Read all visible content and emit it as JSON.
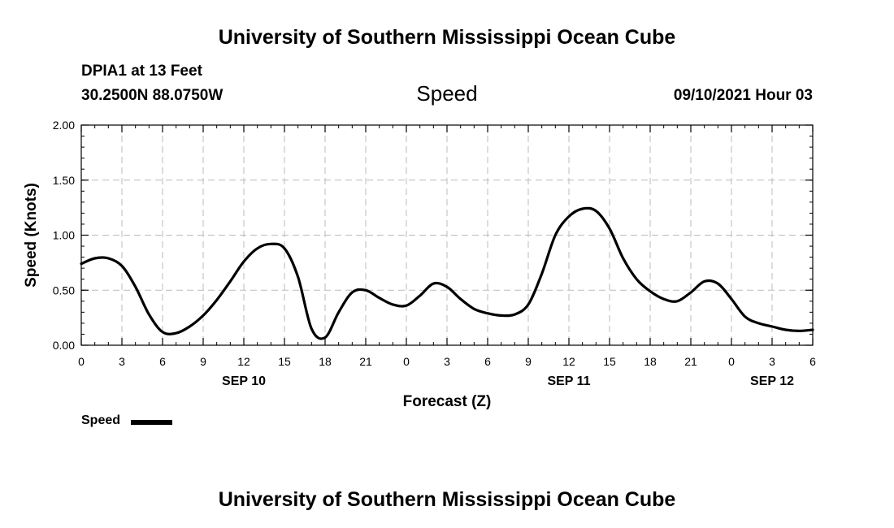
{
  "header": {
    "title_top": "University of Southern Mississippi Ocean Cube",
    "station": "DPIA1 at 13 Feet",
    "coords": "30.2500N  88.0750W",
    "plot_name": "Speed",
    "timestamp": "09/10/2021 Hour 03",
    "title_bottom": "University of Southern Mississippi Ocean Cube"
  },
  "legend": {
    "label": "Speed"
  },
  "colors": {
    "line": "#000000",
    "grid": "#bbbbbb",
    "background": "#ffffff"
  },
  "chart_data": {
    "type": "line",
    "title": "Speed",
    "xlabel": "Forecast (Z)",
    "ylabel": "Speed (Knots)",
    "xlim": [
      0,
      54
    ],
    "ylim": [
      0,
      2
    ],
    "grid": true,
    "x_ticks": [
      0,
      3,
      6,
      9,
      12,
      15,
      18,
      21,
      24,
      27,
      30,
      33,
      36,
      39,
      42,
      45,
      48,
      51,
      54
    ],
    "x_tick_labels": [
      "0",
      "3",
      "6",
      "9",
      "12",
      "15",
      "18",
      "21",
      "0",
      "3",
      "6",
      "9",
      "12",
      "15",
      "18",
      "21",
      "0",
      "3",
      "6"
    ],
    "y_ticks": [
      0,
      0.5,
      1.0,
      1.5,
      2.0
    ],
    "y_tick_labels": [
      "0.00",
      "0.50",
      "1.00",
      "1.50",
      "2.00"
    ],
    "day_labels": [
      {
        "x": 12,
        "label": "SEP 10"
      },
      {
        "x": 36,
        "label": "SEP 11"
      },
      {
        "x": 51,
        "label": "SEP 12"
      }
    ],
    "series": [
      {
        "name": "Speed",
        "x": [
          0,
          1,
          2,
          3,
          4,
          5,
          6,
          7,
          8,
          9,
          10,
          11,
          12,
          13,
          14,
          15,
          16,
          17,
          18,
          19,
          20,
          21,
          22,
          23,
          24,
          25,
          26,
          27,
          28,
          29,
          30,
          31,
          32,
          33,
          34,
          35,
          36,
          37,
          38,
          39,
          40,
          41,
          42,
          43,
          44,
          45,
          46,
          47,
          48,
          49,
          50,
          51,
          52,
          53,
          54
        ],
        "values": [
          0.74,
          0.79,
          0.79,
          0.72,
          0.53,
          0.28,
          0.12,
          0.11,
          0.17,
          0.27,
          0.41,
          0.58,
          0.76,
          0.88,
          0.92,
          0.88,
          0.62,
          0.15,
          0.07,
          0.3,
          0.48,
          0.5,
          0.43,
          0.37,
          0.36,
          0.45,
          0.56,
          0.53,
          0.42,
          0.33,
          0.29,
          0.27,
          0.28,
          0.37,
          0.65,
          1.0,
          1.17,
          1.24,
          1.22,
          1.06,
          0.79,
          0.6,
          0.49,
          0.42,
          0.4,
          0.48,
          0.58,
          0.56,
          0.42,
          0.26,
          0.2,
          0.17,
          0.14,
          0.13,
          0.14
        ]
      }
    ]
  }
}
